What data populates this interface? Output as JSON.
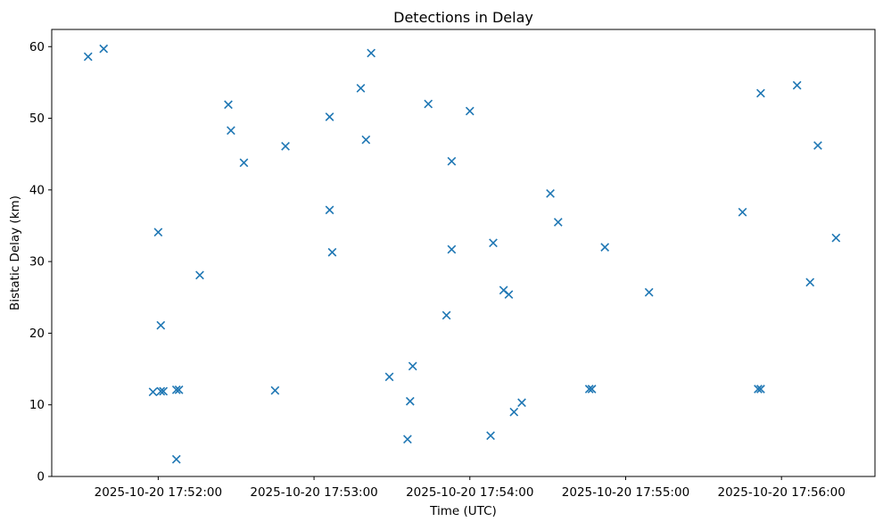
{
  "figure": {
    "background_color": "#ffffff",
    "marker_color": "#1f77b4",
    "axis_color": "#000000",
    "text_color": "#000000"
  },
  "chart_data": {
    "type": "scatter",
    "marker": "x",
    "title": "Detections in Delay",
    "xlabel": "Time (UTC)",
    "ylabel": "Bistatic Delay (km)",
    "grid": false,
    "legend": null,
    "x_tick_labels": [
      "2025-10-20 17:52:00",
      "2025-10-20 17:53:00",
      "2025-10-20 17:54:00",
      "2025-10-20 17:55:00",
      "2025-10-20 17:56:00"
    ],
    "y_ticks": [
      0,
      10,
      20,
      30,
      40,
      50,
      60
    ],
    "xlim": [
      "2025-10-20 17:51:19",
      "2025-10-20 17:56:36"
    ],
    "ylim": [
      0,
      62.4
    ],
    "points": [
      {
        "time": "2025-10-20 17:51:33",
        "delay_km": 58.6
      },
      {
        "time": "2025-10-20 17:51:39",
        "delay_km": 59.7
      },
      {
        "time": "2025-10-20 17:51:58",
        "delay_km": 11.8
      },
      {
        "time": "2025-10-20 17:52:00",
        "delay_km": 34.1
      },
      {
        "time": "2025-10-20 17:52:01",
        "delay_km": 21.1
      },
      {
        "time": "2025-10-20 17:52:01",
        "delay_km": 11.9
      },
      {
        "time": "2025-10-20 17:52:02",
        "delay_km": 11.9
      },
      {
        "time": "2025-10-20 17:52:07",
        "delay_km": 12.1
      },
      {
        "time": "2025-10-20 17:52:07",
        "delay_km": 2.4
      },
      {
        "time": "2025-10-20 17:52:08",
        "delay_km": 12.1
      },
      {
        "time": "2025-10-20 17:52:16",
        "delay_km": 28.1
      },
      {
        "time": "2025-10-20 17:52:27",
        "delay_km": 51.9
      },
      {
        "time": "2025-10-20 17:52:28",
        "delay_km": 48.3
      },
      {
        "time": "2025-10-20 17:52:33",
        "delay_km": 43.8
      },
      {
        "time": "2025-10-20 17:52:45",
        "delay_km": 12.0
      },
      {
        "time": "2025-10-20 17:52:49",
        "delay_km": 46.1
      },
      {
        "time": "2025-10-20 17:53:06",
        "delay_km": 50.2
      },
      {
        "time": "2025-10-20 17:53:06",
        "delay_km": 37.2
      },
      {
        "time": "2025-10-20 17:53:07",
        "delay_km": 31.3
      },
      {
        "time": "2025-10-20 17:53:18",
        "delay_km": 54.2
      },
      {
        "time": "2025-10-20 17:53:20",
        "delay_km": 47.0
      },
      {
        "time": "2025-10-20 17:53:22",
        "delay_km": 59.1
      },
      {
        "time": "2025-10-20 17:53:29",
        "delay_km": 13.9
      },
      {
        "time": "2025-10-20 17:53:36",
        "delay_km": 5.2
      },
      {
        "time": "2025-10-20 17:53:37",
        "delay_km": 10.5
      },
      {
        "time": "2025-10-20 17:53:38",
        "delay_km": 15.4
      },
      {
        "time": "2025-10-20 17:53:44",
        "delay_km": 52.0
      },
      {
        "time": "2025-10-20 17:53:51",
        "delay_km": 22.5
      },
      {
        "time": "2025-10-20 17:53:53",
        "delay_km": 44.0
      },
      {
        "time": "2025-10-20 17:53:53",
        "delay_km": 31.7
      },
      {
        "time": "2025-10-20 17:54:00",
        "delay_km": 51.0
      },
      {
        "time": "2025-10-20 17:54:08",
        "delay_km": 5.7
      },
      {
        "time": "2025-10-20 17:54:09",
        "delay_km": 32.6
      },
      {
        "time": "2025-10-20 17:54:13",
        "delay_km": 26.0
      },
      {
        "time": "2025-10-20 17:54:15",
        "delay_km": 25.4
      },
      {
        "time": "2025-10-20 17:54:17",
        "delay_km": 9.0
      },
      {
        "time": "2025-10-20 17:54:20",
        "delay_km": 10.3
      },
      {
        "time": "2025-10-20 17:54:31",
        "delay_km": 39.5
      },
      {
        "time": "2025-10-20 17:54:34",
        "delay_km": 35.5
      },
      {
        "time": "2025-10-20 17:54:46",
        "delay_km": 12.2
      },
      {
        "time": "2025-10-20 17:54:47",
        "delay_km": 12.2
      },
      {
        "time": "2025-10-20 17:54:52",
        "delay_km": 32.0
      },
      {
        "time": "2025-10-20 17:55:09",
        "delay_km": 25.7
      },
      {
        "time": "2025-10-20 17:55:45",
        "delay_km": 36.9
      },
      {
        "time": "2025-10-20 17:55:51",
        "delay_km": 12.2
      },
      {
        "time": "2025-10-20 17:55:52",
        "delay_km": 12.2
      },
      {
        "time": "2025-10-20 17:55:52",
        "delay_km": 53.5
      },
      {
        "time": "2025-10-20 17:56:06",
        "delay_km": 54.6
      },
      {
        "time": "2025-10-20 17:56:11",
        "delay_km": 27.1
      },
      {
        "time": "2025-10-20 17:56:14",
        "delay_km": 46.2
      },
      {
        "time": "2025-10-20 17:56:21",
        "delay_km": 33.3
      }
    ]
  }
}
